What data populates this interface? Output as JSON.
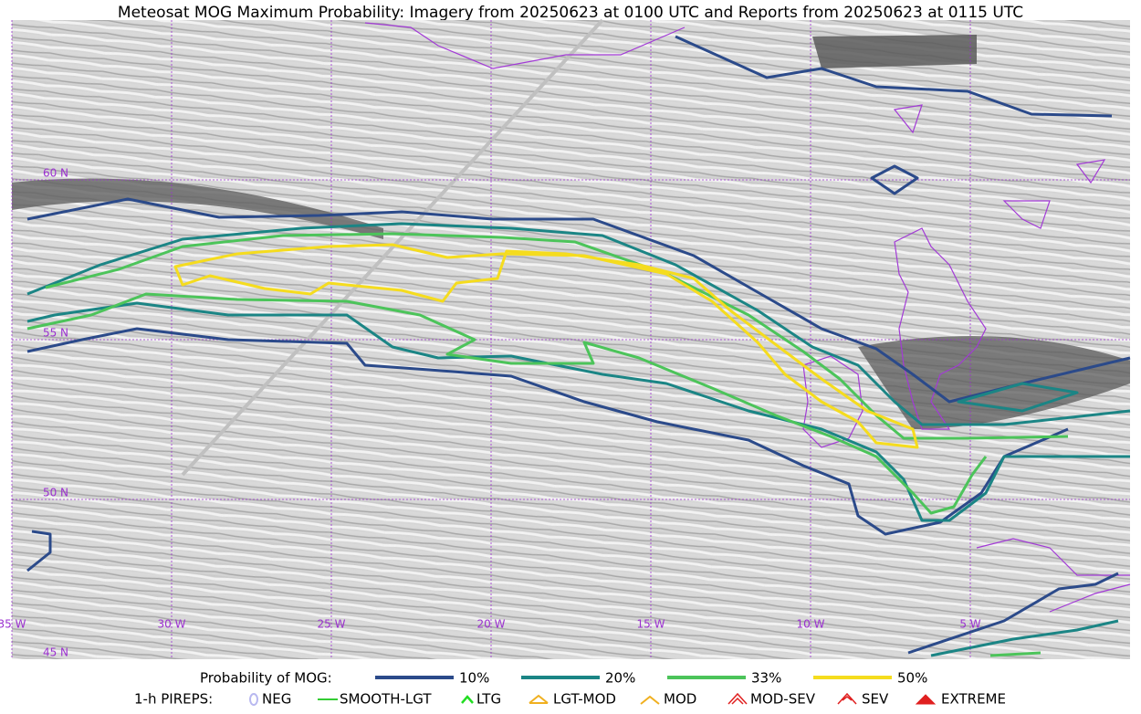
{
  "title": "Meteosat MOG Maximum Probability: Imagery from 20250623 at 0100 UTC and Reports from 20250623 at 0115 UTC",
  "map": {
    "lon_labels": [
      "35 W",
      "30 W",
      "25 W",
      "20 W",
      "15 W",
      "10 W",
      "5 W"
    ],
    "lat_labels": [
      "60 N",
      "55 N",
      "50 N",
      "45 N"
    ]
  },
  "legend": {
    "heading": "Probability of MOG:",
    "items": [
      {
        "label": "10%",
        "color": "#2b4a8a"
      },
      {
        "label": "20%",
        "color": "#1b8585"
      },
      {
        "label": "33%",
        "color": "#4cc45a"
      },
      {
        "label": "50%",
        "color": "#f5dc1e"
      }
    ]
  },
  "pireps": {
    "heading": "1-h PIREPS:",
    "items": [
      {
        "label": "NEG",
        "color": "#b8b8f0"
      },
      {
        "label": "SMOOTH-LGT",
        "color": "#33cc33"
      },
      {
        "label": "LTG",
        "color": "#22dd22"
      },
      {
        "label": "LGT-MOD",
        "color": "#f0b020"
      },
      {
        "label": "MOD",
        "color": "#f0b020"
      },
      {
        "label": "MOD-SEV",
        "color": "#e02020"
      },
      {
        "label": "SEV",
        "color": "#e02020"
      },
      {
        "label": "EXTREME",
        "color": "#e02020"
      }
    ]
  }
}
